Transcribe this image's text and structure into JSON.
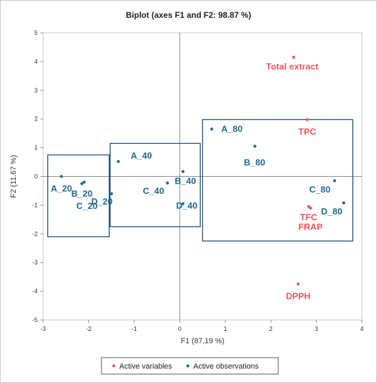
{
  "chart_data": {
    "type": "scatter",
    "title": "Biplot (axes F1 and F2: 98.87 %)",
    "xlabel": "F1 (87,19 %)",
    "ylabel": "F2 (11.67 %)",
    "xlim": [
      -3,
      4
    ],
    "ylim": [
      -5,
      5
    ],
    "xticks": [
      -3,
      -2,
      -1,
      0,
      1,
      2,
      3,
      4
    ],
    "yticks": [
      -5,
      -4,
      -3,
      -2,
      -1,
      0,
      1,
      2,
      3,
      4,
      5
    ],
    "series": [
      {
        "name": "Active variables",
        "color": "#f0565a",
        "points": [
          {
            "label": "Total extract",
            "x": 2.5,
            "y": 4.15
          },
          {
            "label": "TPC",
            "x": 2.8,
            "y": 1.98
          },
          {
            "label": "TFC",
            "x": 2.83,
            "y": -1.05
          },
          {
            "label": "FRAP",
            "x": 2.87,
            "y": -1.1
          },
          {
            "label": "DPPH",
            "x": 2.6,
            "y": -3.75
          }
        ]
      },
      {
        "name": "Active observations",
        "color": "#1f6b8e",
        "points": [
          {
            "label": "A_20",
            "x": -2.6,
            "y": 0.0
          },
          {
            "label": "B_20",
            "x": -2.15,
            "y": -0.25
          },
          {
            "label": "C_20",
            "x": -2.1,
            "y": -0.2
          },
          {
            "label": "D_20",
            "x": -1.5,
            "y": -0.6
          },
          {
            "label": "A_40",
            "x": -1.35,
            "y": 0.52
          },
          {
            "label": "B_40",
            "x": 0.07,
            "y": 0.17
          },
          {
            "label": "C_40",
            "x": -0.27,
            "y": -0.23
          },
          {
            "label": "D_40",
            "x": 0.07,
            "y": -0.95
          },
          {
            "label": "A_80",
            "x": 0.7,
            "y": 1.65
          },
          {
            "label": "B_80",
            "x": 1.65,
            "y": 1.05
          },
          {
            "label": "C_80",
            "x": 3.4,
            "y": -0.15
          },
          {
            "label": "D_80",
            "x": 3.6,
            "y": -0.92
          }
        ]
      }
    ],
    "groups": [
      {
        "x": [
          -2.9,
          -1.55
        ],
        "y": [
          -2.1,
          0.75
        ]
      },
      {
        "x": [
          -1.53,
          0.45
        ],
        "y": [
          -1.75,
          1.15
        ]
      },
      {
        "x": [
          0.5,
          3.8
        ],
        "y": [
          -2.25,
          1.98
        ]
      }
    ],
    "legend": {
      "position": "bottom",
      "items": [
        "Active variables",
        "Active observations"
      ]
    }
  }
}
